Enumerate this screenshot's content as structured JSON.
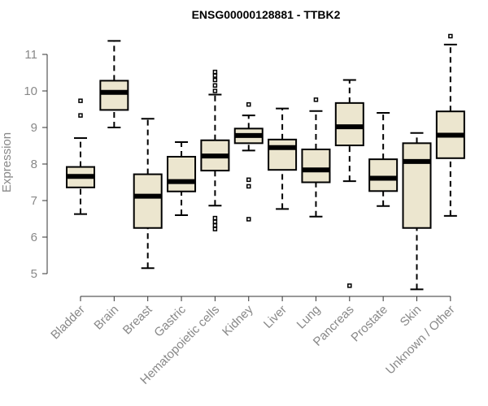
{
  "chart_data": {
    "type": "boxplot",
    "title": "ENSG00000128881 - TTBK2",
    "xlabel": "",
    "ylabel": "Expression",
    "ylim": [
      4.5,
      11.5
    ],
    "yticks": [
      5,
      6,
      7,
      8,
      9,
      10,
      11
    ],
    "box_fill": "#ece6cf",
    "categories": [
      "Bladder",
      "Brain",
      "Breast",
      "Gastric",
      "Hematopoietic cells",
      "Kidney",
      "Liver",
      "Lung",
      "Pancreas",
      "Prostate",
      "Skin",
      "Unknown / Other"
    ],
    "series": [
      {
        "name": "Bladder",
        "whisker_low": 6.63,
        "q1": 7.36,
        "median": 7.66,
        "q3": 7.92,
        "whisker_high": 8.71,
        "outliers": [
          9.33,
          9.73
        ]
      },
      {
        "name": "Brain",
        "whisker_low": 9.0,
        "q1": 9.48,
        "median": 9.96,
        "q3": 10.28,
        "whisker_high": 11.37,
        "outliers": []
      },
      {
        "name": "Breast",
        "whisker_low": 5.15,
        "q1": 6.25,
        "median": 7.12,
        "q3": 7.72,
        "whisker_high": 9.24,
        "outliers": []
      },
      {
        "name": "Gastric",
        "whisker_low": 6.6,
        "q1": 7.25,
        "median": 7.52,
        "q3": 8.2,
        "whisker_high": 8.6,
        "outliers": []
      },
      {
        "name": "Hematopoietic cells",
        "whisker_low": 6.86,
        "q1": 7.82,
        "median": 8.22,
        "q3": 8.65,
        "whisker_high": 9.9,
        "outliers": [
          10.0,
          10.15,
          10.3,
          10.42,
          10.52,
          6.52,
          6.42,
          6.32,
          6.22
        ]
      },
      {
        "name": "Kidney",
        "whisker_low": 8.37,
        "q1": 8.57,
        "median": 8.78,
        "q3": 8.97,
        "whisker_high": 9.33,
        "outliers": [
          9.63,
          7.57,
          7.39,
          6.49
        ]
      },
      {
        "name": "Liver",
        "whisker_low": 6.77,
        "q1": 7.84,
        "median": 8.45,
        "q3": 8.67,
        "whisker_high": 9.52,
        "outliers": []
      },
      {
        "name": "Lung",
        "whisker_low": 6.56,
        "q1": 7.5,
        "median": 7.84,
        "q3": 8.4,
        "whisker_high": 9.45,
        "outliers": [
          9.76
        ]
      },
      {
        "name": "Pancreas",
        "whisker_low": 7.53,
        "q1": 8.51,
        "median": 9.02,
        "q3": 9.67,
        "whisker_high": 10.3,
        "outliers": [
          4.67
        ]
      },
      {
        "name": "Prostate",
        "whisker_low": 6.85,
        "q1": 7.26,
        "median": 7.61,
        "q3": 8.13,
        "whisker_high": 9.4,
        "outliers": []
      },
      {
        "name": "Skin",
        "whisker_low": 4.57,
        "q1": 6.25,
        "median": 8.07,
        "q3": 8.57,
        "whisker_high": 8.85,
        "outliers": []
      },
      {
        "name": "Unknown / Other",
        "whisker_low": 6.58,
        "q1": 8.16,
        "median": 8.79,
        "q3": 9.44,
        "whisker_high": 11.27,
        "outliers": [
          11.5
        ]
      }
    ]
  }
}
